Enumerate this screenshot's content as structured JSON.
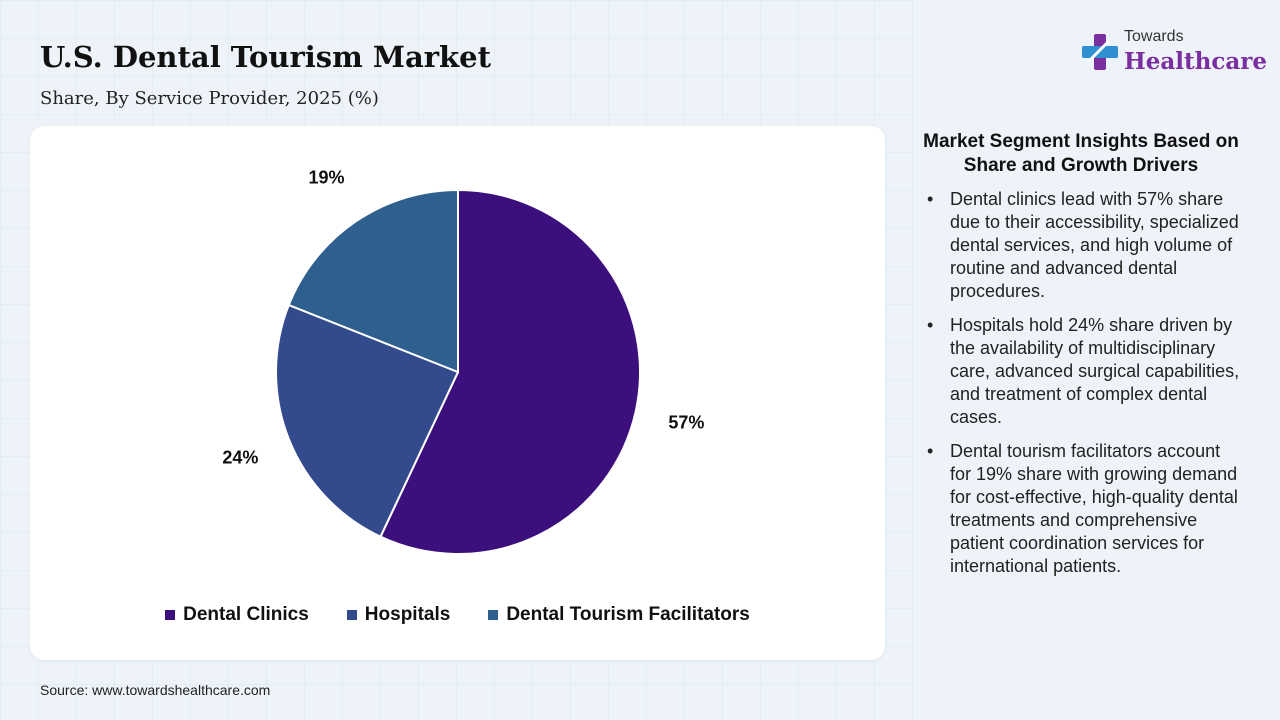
{
  "header": {
    "title": "U.S. Dental Tourism Market",
    "subtitle": "Share, By Service Provider, 2025 (%)"
  },
  "brand": {
    "small": "Towards",
    "big": "Healthcare"
  },
  "chart_data": {
    "type": "pie",
    "categories": [
      "Dental Clinics",
      "Hospitals",
      "Dental Tourism Facilitators"
    ],
    "values": [
      57,
      24,
      19
    ],
    "labels": [
      "57%",
      "24%",
      "19%"
    ],
    "colors": [
      "#3b0f7c",
      "#334a8c",
      "#2e5f8e"
    ],
    "legend": "bottom"
  },
  "insights": {
    "title": "Market Segment Insights Based on Share and Growth Drivers",
    "bullet": "•",
    "items": [
      "Dental clinics lead with 57% share due to their accessibility, specialized dental services, and high volume of routine and advanced dental procedures.",
      "Hospitals hold 24% share driven by the availability of multidisciplinary care, advanced surgical capabilities, and treatment of complex dental cases.",
      "Dental tourism facilitators account for 19% share with growing demand for cost-effective, high-quality dental treatments and comprehensive patient coordination services for international patients."
    ]
  },
  "footer": {
    "source": "Source: www.towardshealthcare.com"
  }
}
